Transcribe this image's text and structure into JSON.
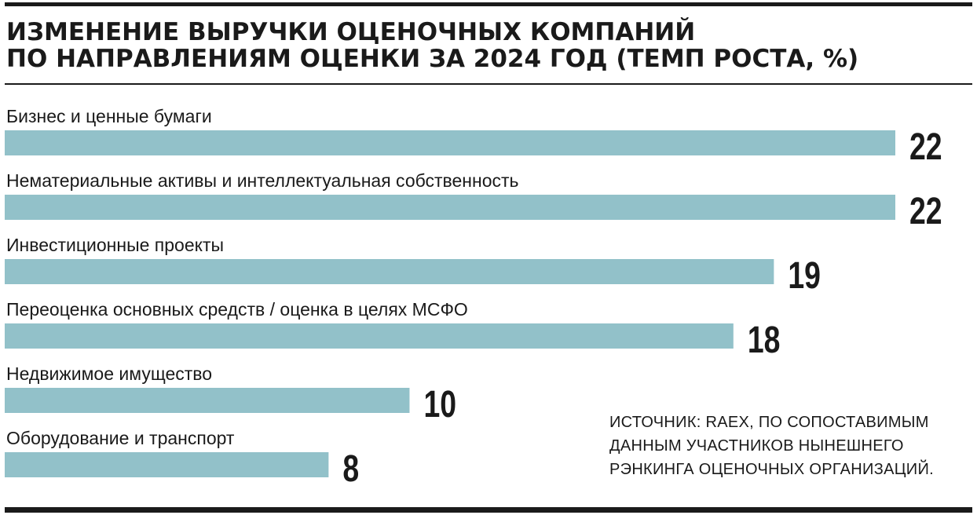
{
  "title_lines": [
    "ИЗМЕНЕНИЕ ВЫРУЧКИ ОЦЕНОЧНЫХ КОМПАНИЙ",
    "ПО НАПРАВЛЕНИЯМ ОЦЕНКИ ЗА 2024 ГОД (ТЕМП РОСТА, %)"
  ],
  "source_lines": [
    "ИСТОЧНИК: RAEX, ПО СОПОСТАВИМЫМ",
    "ДАННЫМ УЧАСТНИКОВ НЫНЕШНЕГО",
    "РЭНКИНГА ОЦЕНОЧНЫХ ОРГАНИЗАЦИЙ."
  ],
  "bar_color": "#92c1c9",
  "chart_data": {
    "type": "bar",
    "orientation": "horizontal",
    "title": "ИЗМЕНЕНИЕ ВЫРУЧКИ ОЦЕНОЧНЫХ КОМПАНИЙ ПО НАПРАВЛЕНИЯМ ОЦЕНКИ ЗА 2024 ГОД (ТЕМП РОСТА, %)",
    "categories": [
      "Бизнес и ценные бумаги",
      "Нематериальные активы и интеллектуальная собственность",
      "Инвестиционные проекты",
      "Переоценка основных средств / оценка в целях МСФО",
      "Недвижимое имущество",
      "Оборудование и транспорт"
    ],
    "values": [
      22,
      22,
      19,
      18,
      10,
      8
    ],
    "xlim": [
      0,
      22
    ],
    "grid": false,
    "legend": "none"
  }
}
